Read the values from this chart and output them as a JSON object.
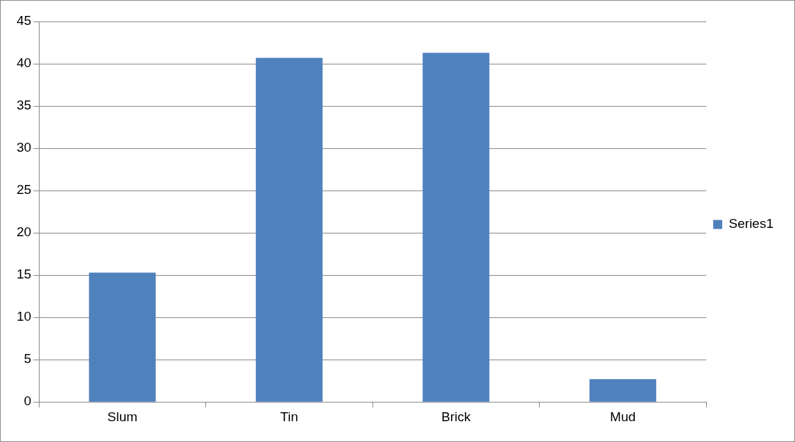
{
  "chart_data": {
    "type": "bar",
    "categories": [
      "Slum",
      "Tin",
      "Brick",
      "Mud"
    ],
    "series": [
      {
        "name": "Series1",
        "color": "#4f81bd",
        "values": [
          15.3,
          40.7,
          41.3,
          2.7
        ]
      }
    ],
    "ylim": [
      0,
      45
    ],
    "yticks": [
      0,
      5,
      10,
      15,
      20,
      25,
      30,
      35,
      40,
      45
    ],
    "grid": "y",
    "legend": "right"
  }
}
